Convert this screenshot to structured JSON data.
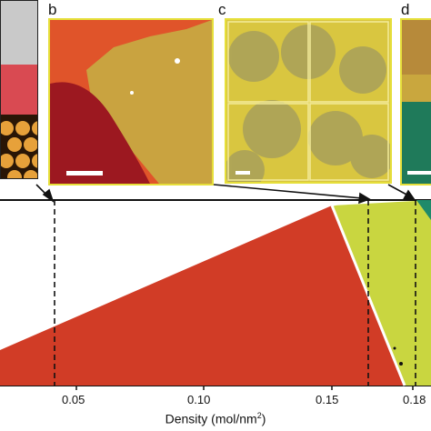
{
  "panels": {
    "b": {
      "label": "b"
    },
    "c": {
      "label": "c"
    },
    "d": {
      "label": "d"
    }
  },
  "axis": {
    "xlabel_prefix": "Density (mol/nm",
    "xlabel_sup": "2",
    "xlabel_suffix": ")",
    "ticks": [
      "0.05",
      "0.10",
      "0.15",
      "0.18"
    ]
  },
  "colors": {
    "red_phase": "#d13c26",
    "yellow_phase": "#c9d640",
    "teal_phase": "#1f8a6a",
    "frame_yellow": "#e6df3a"
  }
}
